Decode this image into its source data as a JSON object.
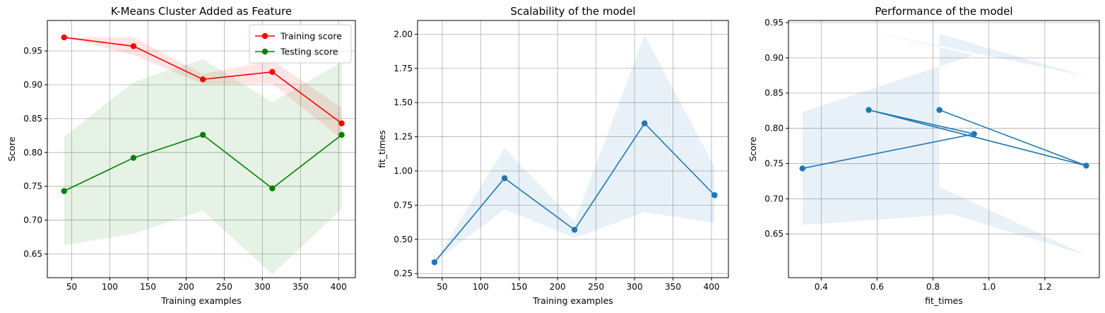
{
  "chart_data": [
    {
      "type": "line",
      "title": "K-Means Cluster Added as Feature",
      "xlabel": "Training examples",
      "ylabel": "Score",
      "xlim": [
        18,
        422
      ],
      "ylim": [
        0.615,
        0.995
      ],
      "xticks": [
        50,
        100,
        150,
        200,
        250,
        300,
        350,
        400
      ],
      "yticks": [
        0.65,
        0.7,
        0.75,
        0.8,
        0.85,
        0.9,
        0.95
      ],
      "grid": true,
      "legend": "top-right",
      "x": [
        40,
        131,
        222,
        313,
        404
      ],
      "series": [
        {
          "name": "Training score",
          "color": "#ff0000",
          "values": [
            0.97,
            0.957,
            0.908,
            0.919,
            0.843
          ],
          "band_low": [
            0.97,
            0.944,
            0.901,
            0.902,
            0.82
          ],
          "band_high": [
            0.97,
            0.97,
            0.916,
            0.936,
            0.866
          ]
        },
        {
          "name": "Testing score",
          "color": "#008000",
          "values": [
            0.743,
            0.792,
            0.826,
            0.747,
            0.826
          ],
          "band_low": [
            0.663,
            0.68,
            0.714,
            0.62,
            0.717
          ],
          "band_high": [
            0.823,
            0.904,
            0.938,
            0.874,
            0.934
          ]
        }
      ]
    },
    {
      "type": "line",
      "title": "Scalability of the model",
      "xlabel": "Training examples",
      "ylabel": "fit_times",
      "xlim": [
        18,
        422
      ],
      "ylim": [
        0.22,
        2.1
      ],
      "xticks": [
        50,
        100,
        150,
        200,
        250,
        300,
        350,
        400
      ],
      "yticks": [
        0.25,
        0.5,
        0.75,
        1.0,
        1.25,
        1.5,
        1.75,
        2.0
      ],
      "grid": true,
      "x": [
        40,
        131,
        222,
        313,
        404
      ],
      "series": [
        {
          "color": "#1f77b4",
          "values": [
            0.333,
            0.947,
            0.57,
            1.348,
            0.823
          ],
          "band_low": [
            0.333,
            0.72,
            0.51,
            0.7,
            0.62
          ],
          "band_high": [
            0.333,
            1.17,
            0.63,
            1.995,
            1.03
          ]
        }
      ]
    },
    {
      "type": "line",
      "title": "Performance of the model",
      "xlabel": "fit_times",
      "ylabel": "Score",
      "xlim": [
        0.283,
        1.395
      ],
      "ylim": [
        0.588,
        0.953
      ],
      "xticks": [
        0.4,
        0.6,
        0.8,
        1.0,
        1.2
      ],
      "yticks": [
        0.65,
        0.7,
        0.75,
        0.8,
        0.85,
        0.9,
        0.95
      ],
      "grid": true,
      "x": [
        0.333,
        0.947,
        0.57,
        1.348,
        0.823
      ],
      "series": [
        {
          "color": "#1f77b4",
          "values": [
            0.743,
            0.792,
            0.826,
            0.747,
            0.826
          ],
          "band_low": [
            0.663,
            0.68,
            0.714,
            0.62,
            0.717
          ],
          "band_high": [
            0.823,
            0.904,
            0.938,
            0.874,
            0.934
          ]
        }
      ]
    }
  ]
}
